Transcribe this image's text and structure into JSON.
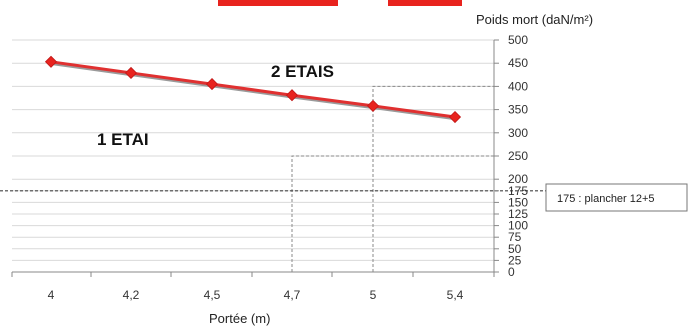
{
  "chart_data": {
    "type": "line",
    "categories": [
      "4",
      "4,2",
      "4,5",
      "4,7",
      "5",
      "5,4"
    ],
    "series": [
      {
        "values": [
          453,
          429,
          405,
          381,
          358,
          334
        ]
      }
    ],
    "ylabel": "Poids mort (daN/m²)",
    "xlabel": "Portée (m)",
    "ylim": [
      0,
      500
    ],
    "yticks": [
      "0",
      "25",
      "50",
      "75",
      "100",
      "125",
      "150",
      "175",
      "200",
      "250",
      "300",
      "350",
      "400",
      "450",
      "500"
    ],
    "ytick_values": [
      0,
      25,
      50,
      75,
      100,
      125,
      150,
      175,
      200,
      250,
      300,
      350,
      400,
      450,
      500
    ],
    "grid": true,
    "y_axis_side": "right",
    "series_color": "#e03030",
    "marker_color": "#e8231e",
    "regions": [
      {
        "label": "1 ETAI"
      },
      {
        "label": "2 ETAIS"
      }
    ],
    "reference_line": {
      "value": 175,
      "label": "175 : plancher 12+5"
    },
    "step_lines": [
      {
        "x_category": "4,7",
        "y": 250
      },
      {
        "x_category": "5",
        "y": 400
      }
    ]
  }
}
